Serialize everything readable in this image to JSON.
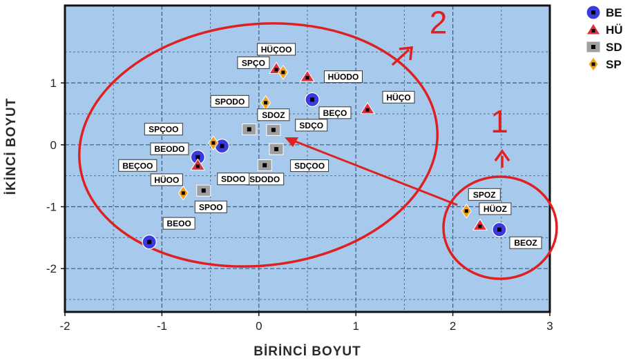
{
  "chart_data": {
    "type": "scatter",
    "xlabel": "BİRİNCİ BOYUT",
    "ylabel": "İKİNCİ BOYUT",
    "xlim": [
      -2,
      3
    ],
    "ylim": [
      -2.7,
      2.25
    ],
    "x_ticks": [
      -2,
      -1,
      0,
      1,
      2,
      3
    ],
    "y_ticks": [
      -2,
      -1,
      0,
      1
    ],
    "grid": true,
    "legend_position": "right-top",
    "colors": {
      "plot_bg": "#a7c9ec",
      "grid": "#3a5a80",
      "BE": "#3a3ae0",
      "HÜ": "#e0303a",
      "SD": "#a0a0a0",
      "SP": "#f0a020",
      "annotation": "#e02020"
    },
    "series": [
      {
        "name": "BE",
        "marker": "circle",
        "points": [
          {
            "label": "BEÇO",
            "x": 0.55,
            "y": 0.73
          },
          {
            "label": "BEODO",
            "x": -0.38,
            "y": -0.02
          },
          {
            "label": "BEÇOO",
            "x": -0.63,
            "y": -0.2
          },
          {
            "label": "BEOO",
            "x": -1.13,
            "y": -1.57
          },
          {
            "label": "BEOZ",
            "x": 2.48,
            "y": -1.37
          }
        ]
      },
      {
        "name": "HÜ",
        "marker": "triangle",
        "points": [
          {
            "label": "HÜÇOO",
            "x": 0.18,
            "y": 1.23
          },
          {
            "label": "HÜODO",
            "x": 0.5,
            "y": 1.1
          },
          {
            "label": "HÜÇO",
            "x": 1.12,
            "y": 0.58
          },
          {
            "label": "HÜOO",
            "x": -0.63,
            "y": -0.33
          },
          {
            "label": "HÜOZ",
            "x": 2.28,
            "y": -1.3
          }
        ]
      },
      {
        "name": "SD",
        "marker": "square",
        "points": [
          {
            "label": "SDOZ",
            "x": 0.15,
            "y": 0.24
          },
          {
            "label": "SDÇO",
            "x": -0.1,
            "y": 0.25
          },
          {
            "label": "SDÇOO",
            "x": 0.18,
            "y": -0.07
          },
          {
            "label": "SDODO",
            "x": 0.06,
            "y": -0.33
          },
          {
            "label": "SDOO",
            "x": -0.57,
            "y": -0.74
          }
        ]
      },
      {
        "name": "SP",
        "marker": "diamond",
        "points": [
          {
            "label": "SPÇO",
            "x": 0.25,
            "y": 1.17
          },
          {
            "label": "SPODO",
            "x": 0.07,
            "y": 0.68
          },
          {
            "label": "SPÇOO",
            "x": -0.47,
            "y": 0.03
          },
          {
            "label": "SPOO",
            "x": -0.78,
            "y": -0.78
          },
          {
            "label": "SPOZ",
            "x": 2.14,
            "y": -1.07
          }
        ]
      }
    ],
    "annotations": [
      {
        "text": "1",
        "x": 2.48,
        "y": 0.2
      },
      {
        "text": "2",
        "x": 1.85,
        "y": 1.8
      }
    ]
  }
}
